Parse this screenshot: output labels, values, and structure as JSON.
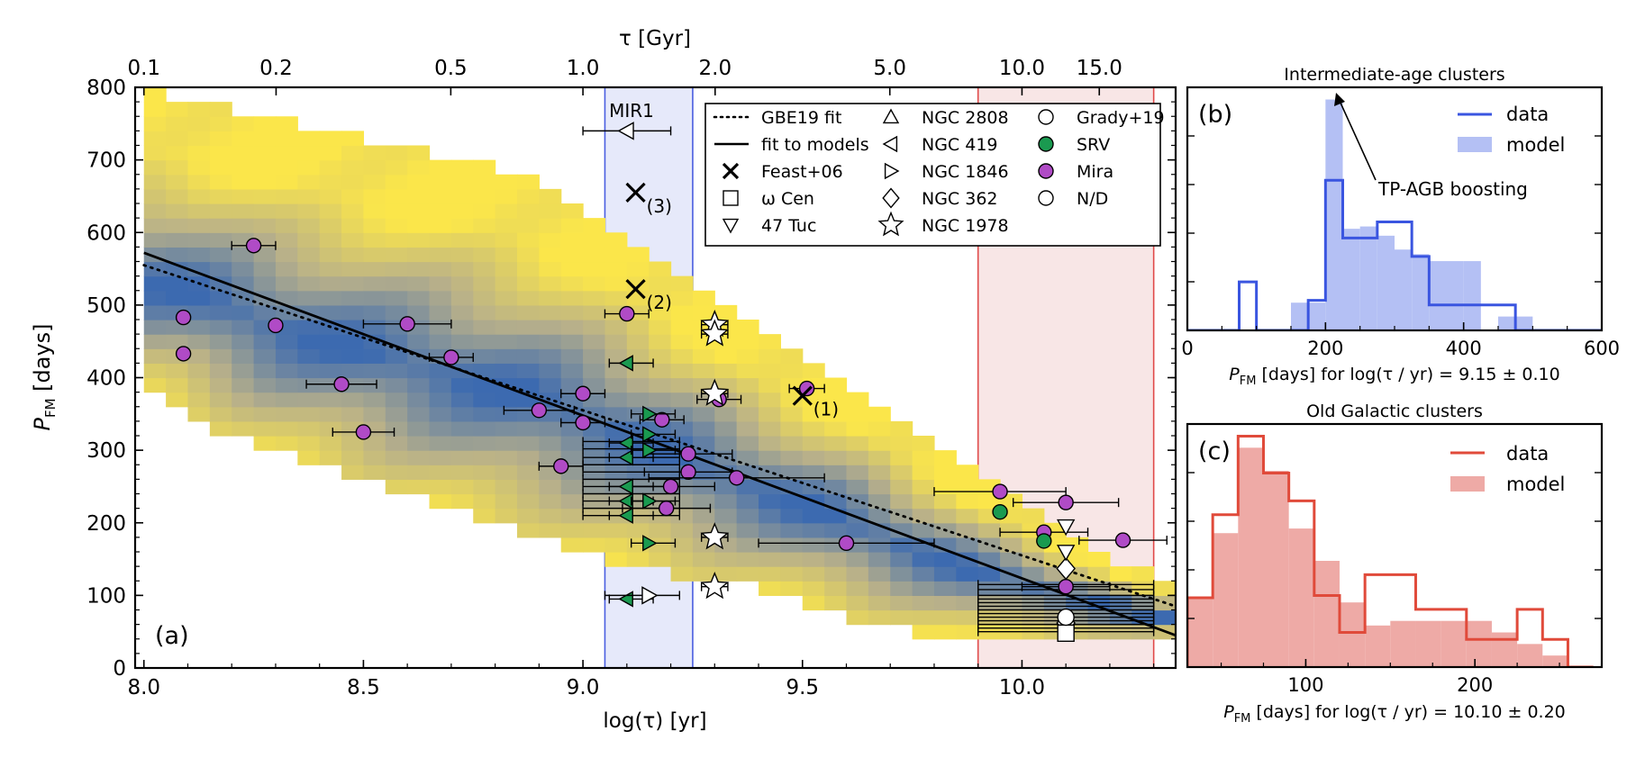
{
  "chart_data": [
    {
      "id": "a",
      "type": "scatter",
      "panel_label": "(a)",
      "xlabel": "log(τ) [yr]",
      "ylabel_main": "P",
      "ylabel_sub": "FM",
      "ylabel_rest": " [days]",
      "top_axis_label": "τ [Gyr]",
      "xlim": [
        7.98,
        10.35
      ],
      "ylim": [
        0,
        800
      ],
      "xticks": [
        8.0,
        8.5,
        9.0,
        9.5,
        10.0
      ],
      "xtick_labels": [
        "8.0",
        "8.5",
        "9.0",
        "9.5",
        "10.0"
      ],
      "yticks": [
        0,
        100,
        200,
        300,
        400,
        500,
        600,
        700,
        800
      ],
      "ytick_labels": [
        "0",
        "100",
        "200",
        "300",
        "400",
        "500",
        "600",
        "700",
        "800"
      ],
      "top_ticks_gyr": [
        0.1,
        0.2,
        0.5,
        1.0,
        2.0,
        5.0,
        10.0,
        15.0
      ],
      "top_tick_labels": [
        "0.1",
        "0.2",
        "0.5",
        "1.0",
        "2.0",
        "5.0",
        "10.0",
        "15.0"
      ],
      "bands": [
        {
          "name": "MIR1",
          "x0": 9.05,
          "x1": 9.25,
          "fill": "#e6e9fa",
          "edge": "#4a5ee0"
        },
        {
          "name": "",
          "x0": 9.9,
          "x1": 10.3,
          "fill": "#f8e6e6",
          "edge": "#e04a4a"
        }
      ],
      "fit_lines": {
        "models": {
          "x": [
            8.0,
            10.35
          ],
          "y": [
            572,
            45
          ]
        },
        "gbe19": {
          "x": [
            8.0,
            10.35
          ],
          "y": [
            555,
            85
          ]
        }
      },
      "model_density": {
        "upper_edge": [
          [
            8.0,
            800
          ],
          [
            8.2,
            770
          ],
          [
            8.4,
            745
          ],
          [
            8.6,
            720
          ],
          [
            8.8,
            690
          ],
          [
            9.0,
            640
          ],
          [
            9.2,
            560
          ],
          [
            9.4,
            470
          ],
          [
            9.6,
            400
          ],
          [
            9.8,
            310
          ],
          [
            10.0,
            225
          ],
          [
            10.35,
            105
          ]
        ],
        "lower_edge": [
          [
            8.0,
            390
          ],
          [
            8.2,
            320
          ],
          [
            8.4,
            275
          ],
          [
            8.6,
            240
          ],
          [
            8.8,
            195
          ],
          [
            9.0,
            160
          ],
          [
            9.2,
            130
          ],
          [
            9.4,
            110
          ],
          [
            9.6,
            70
          ],
          [
            9.8,
            45
          ],
          [
            10.0,
            45
          ],
          [
            10.35,
            40
          ]
        ],
        "core_center": [
          [
            8.05,
            530
          ],
          [
            8.3,
            470
          ],
          [
            8.6,
            420
          ],
          [
            8.9,
            370
          ],
          [
            9.1,
            320
          ],
          [
            9.3,
            270
          ],
          [
            9.6,
            200
          ],
          [
            9.9,
            130
          ],
          [
            10.3,
            70
          ]
        ]
      },
      "legend": [
        {
          "marker": "dotted-line",
          "label": "GBE19 fit"
        },
        {
          "marker": "solid-line",
          "label": "fit to models"
        },
        {
          "marker": "x",
          "label": "Feast+06"
        },
        {
          "marker": "square",
          "label": "ω Cen"
        },
        {
          "marker": "triangle-down",
          "label": "47 Tuc"
        },
        {
          "marker": "triangle-up",
          "label": "NGC 2808"
        },
        {
          "marker": "triangle-left",
          "label": "NGC 419"
        },
        {
          "marker": "triangle-right",
          "label": "NGC 1846"
        },
        {
          "marker": "diamond",
          "label": "NGC 362"
        },
        {
          "marker": "star",
          "label": "NGC 1978"
        },
        {
          "marker": "circle-white",
          "label": "Grady+19"
        },
        {
          "marker": "circle-green",
          "label": "SRV"
        },
        {
          "marker": "circle-purple",
          "label": "Mira"
        },
        {
          "marker": "circle-white",
          "label": "N/D"
        }
      ],
      "colors": {
        "mira": "#b04bc6",
        "srv": "#1a9a50",
        "nd": "#ffffff",
        "yellow": "#fbe64a",
        "blue": "#3c6ab0",
        "model_line": "#000000"
      },
      "feast_points": [
        {
          "x": 9.12,
          "y": 655,
          "label": "(3)"
        },
        {
          "x": 9.12,
          "y": 522,
          "label": "(2)"
        },
        {
          "x": 9.5,
          "y": 375,
          "label": "(1)"
        }
      ],
      "mira_points": [
        {
          "x": 8.09,
          "y": 483,
          "xerr": 0
        },
        {
          "x": 8.09,
          "y": 433,
          "xerr": 0
        },
        {
          "x": 8.25,
          "y": 582,
          "xerr": 0.05
        },
        {
          "x": 8.3,
          "y": 472,
          "xerr": 0
        },
        {
          "x": 8.45,
          "y": 391,
          "xerr": 0.08
        },
        {
          "x": 8.5,
          "y": 325,
          "xerr": 0.07
        },
        {
          "x": 8.6,
          "y": 474,
          "xerr": 0.1
        },
        {
          "x": 8.7,
          "y": 428,
          "xerr": 0.05
        },
        {
          "x": 8.9,
          "y": 355,
          "xerr": 0.08
        },
        {
          "x": 8.95,
          "y": 278,
          "xerr": 0.05
        },
        {
          "x": 9.0,
          "y": 378,
          "xerr": 0.05
        },
        {
          "x": 9.0,
          "y": 338,
          "xerr": 0.05
        },
        {
          "x": 9.1,
          "y": 488,
          "xerr": 0.05
        },
        {
          "x": 9.18,
          "y": 342,
          "xerr": 0.05
        },
        {
          "x": 9.19,
          "y": 220,
          "xerr": 0.1
        },
        {
          "x": 9.2,
          "y": 250,
          "xerr": 0.1
        },
        {
          "x": 9.24,
          "y": 270,
          "xerr": 0.1
        },
        {
          "x": 9.24,
          "y": 295,
          "xerr": 0.1
        },
        {
          "x": 9.31,
          "y": 370,
          "xerr": 0.05
        },
        {
          "x": 9.35,
          "y": 262,
          "xerr": 0.2
        },
        {
          "x": 9.51,
          "y": 385,
          "xerr": 0.04
        },
        {
          "x": 9.6,
          "y": 172,
          "xerr": 0.2
        },
        {
          "x": 9.95,
          "y": 243,
          "xerr": 0.15
        },
        {
          "x": 10.05,
          "y": 187,
          "xerr": 0.1
        },
        {
          "x": 10.1,
          "y": 228,
          "xerr": 0.12
        },
        {
          "x": 10.1,
          "y": 112,
          "xerr": 0.1
        },
        {
          "x": 10.23,
          "y": 176,
          "xerr": 0.1
        }
      ],
      "srv_points": [
        {
          "x": 9.1,
          "y": 420
        },
        {
          "x": 9.1,
          "y": 310
        },
        {
          "x": 9.1,
          "y": 290
        },
        {
          "x": 9.1,
          "y": 250
        },
        {
          "x": 9.1,
          "y": 230
        },
        {
          "x": 9.1,
          "y": 210
        },
        {
          "x": 9.15,
          "y": 350
        },
        {
          "x": 9.15,
          "y": 322
        },
        {
          "x": 9.15,
          "y": 300
        },
        {
          "x": 9.15,
          "y": 230
        },
        {
          "x": 9.15,
          "y": 172
        },
        {
          "x": 9.1,
          "y": 95
        },
        {
          "x": 9.95,
          "y": 215
        },
        {
          "x": 10.05,
          "y": 175
        }
      ],
      "white_points": [
        {
          "marker": "triangle-left",
          "x": 9.1,
          "y": 740
        },
        {
          "marker": "triangle-right",
          "x": 9.15,
          "y": 100
        },
        {
          "marker": "star",
          "x": 9.3,
          "y": 473
        },
        {
          "marker": "star",
          "x": 9.3,
          "y": 460
        },
        {
          "marker": "star",
          "x": 9.3,
          "y": 378
        },
        {
          "marker": "star",
          "x": 9.3,
          "y": 180
        },
        {
          "marker": "star",
          "x": 9.3,
          "y": 112
        },
        {
          "marker": "diamond",
          "x": 10.1,
          "y": 137
        },
        {
          "marker": "diamond",
          "x": 10.1,
          "y": 62
        },
        {
          "marker": "triangle-down",
          "x": 10.1,
          "y": 195
        },
        {
          "marker": "triangle-down",
          "x": 10.1,
          "y": 160
        },
        {
          "marker": "square",
          "x": 10.1,
          "y": 48
        },
        {
          "marker": "circle",
          "x": 10.1,
          "y": 70
        }
      ],
      "left_errorbar_group": {
        "x": 9.1,
        "y_values": [
          312,
          302,
          290,
          280,
          270,
          260,
          250,
          240,
          230,
          220,
          210
        ],
        "x_left": 9.0,
        "x_right": 9.22
      },
      "right_errorbar_group": {
        "x": 10.1,
        "y_values": [
          115,
          108,
          100,
          95,
          90,
          85,
          80,
          75,
          70,
          65,
          60,
          55,
          50
        ],
        "x_left": 9.9,
        "x_right": 10.3
      }
    },
    {
      "id": "b",
      "type": "histogram",
      "panel_label": "(b)",
      "title": "Intermediate-age clusters",
      "xlabel_main": "P",
      "xlabel_sub": "FM",
      "xlabel_rest": " [days] for log(τ / yr) = 9.15 ± 0.10",
      "xlim": [
        0,
        600
      ],
      "xticks": [
        0,
        200,
        400,
        600
      ],
      "xtick_labels": [
        "0",
        "200",
        "400",
        "600"
      ],
      "annotation": "TP-AGB boosting",
      "colors": {
        "data": "#3a55e0",
        "model": "#b4c0f4"
      },
      "legend": [
        {
          "name": "data"
        },
        {
          "name": "model"
        }
      ],
      "bin_edges": [
        0,
        25,
        50,
        75,
        100,
        125,
        150,
        175,
        200,
        225,
        250,
        275,
        300,
        325,
        350,
        375,
        400,
        425,
        450,
        475,
        500,
        525,
        550,
        575,
        600
      ],
      "model_values": [
        0,
        0,
        0,
        0,
        0,
        0,
        0.12,
        0.12,
        1.0,
        0.44,
        0.45,
        0.41,
        0.35,
        0.33,
        0.3,
        0.3,
        0.3,
        0.0,
        0.06,
        0.06,
        0,
        0,
        0,
        0
      ],
      "data_values": [
        0,
        0,
        0,
        0.21,
        0,
        0,
        0,
        0.13,
        0.65,
        0.4,
        0.4,
        0.47,
        0.47,
        0.32,
        0.11,
        0.11,
        0.11,
        0.11,
        0.11,
        0,
        0,
        0,
        0,
        0
      ]
    },
    {
      "id": "c",
      "type": "histogram",
      "panel_label": "(c)",
      "title": "Old Galactic clusters",
      "xlabel_main": "P",
      "xlabel_sub": "FM",
      "xlabel_rest": " [days] for log(τ / yr) = 10.10 ± 0.20",
      "xlim": [
        30,
        275
      ],
      "xticks": [
        100,
        200
      ],
      "xtick_labels": [
        "100",
        "200"
      ],
      "colors": {
        "data": "#e04a3a",
        "model": "#eeaaa6"
      },
      "legend": [
        {
          "name": "data"
        },
        {
          "name": "model"
        }
      ],
      "bin_edges": [
        30,
        45,
        60,
        75,
        90,
        105,
        120,
        135,
        150,
        165,
        180,
        195,
        210,
        225,
        240,
        255,
        270
      ],
      "model_values": [
        0.3,
        0.58,
        0.95,
        0.85,
        0.6,
        0.46,
        0.28,
        0.18,
        0.2,
        0.2,
        0.2,
        0.2,
        0.15,
        0.1,
        0.05,
        0.0
      ],
      "data_values": [
        0.3,
        0.66,
        1.0,
        0.84,
        0.72,
        0.31,
        0.15,
        0.4,
        0.4,
        0.25,
        0.25,
        0.12,
        0.12,
        0.25,
        0.12,
        0.0
      ]
    }
  ]
}
